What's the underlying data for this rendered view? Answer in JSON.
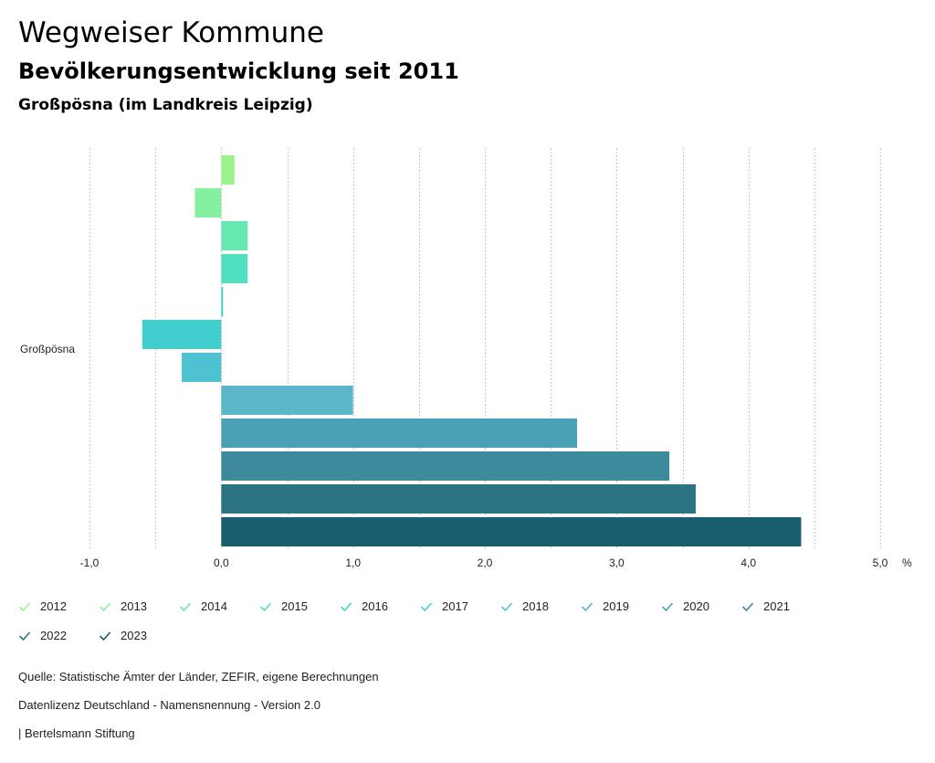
{
  "header": {
    "title": "Wegweiser Kommune",
    "subtitle": "Bevölkerungsentwicklung seit 2011",
    "region": "Großpösna (im Landkreis Leipzig)"
  },
  "chart_data": {
    "type": "bar",
    "orientation": "horizontal",
    "category": "Großpösna",
    "unit_label": "%",
    "xlim": [
      -1.0,
      5.0
    ],
    "ticks": [
      {
        "value": -1.0,
        "label": "-1,0"
      },
      {
        "value": 0.0,
        "label": "0,0"
      },
      {
        "value": 1.0,
        "label": "1,0"
      },
      {
        "value": 2.0,
        "label": "2,0"
      },
      {
        "value": 3.0,
        "label": "3,0"
      },
      {
        "value": 4.0,
        "label": "4,0"
      },
      {
        "value": 5.0,
        "label": "5,0"
      }
    ],
    "grid": true,
    "legend_position": "bottom",
    "series": [
      {
        "name": "2012",
        "value": 0.1,
        "color": "#9cf28a"
      },
      {
        "name": "2013",
        "value": -0.2,
        "color": "#84f0a0"
      },
      {
        "name": "2014",
        "value": 0.2,
        "color": "#66e8b0"
      },
      {
        "name": "2015",
        "value": 0.2,
        "color": "#50e0c0"
      },
      {
        "name": "2016",
        "value": 0.01,
        "color": "#44d6c8"
      },
      {
        "name": "2017",
        "value": -0.6,
        "color": "#42cece"
      },
      {
        "name": "2018",
        "value": -0.3,
        "color": "#4ec2d0"
      },
      {
        "name": "2019",
        "value": 1.0,
        "color": "#5ab6c8"
      },
      {
        "name": "2020",
        "value": 2.7,
        "color": "#4aa0b4"
      },
      {
        "name": "2021",
        "value": 3.4,
        "color": "#3c8a9c"
      },
      {
        "name": "2022",
        "value": 3.6,
        "color": "#2c7484"
      },
      {
        "name": "2023",
        "value": 4.4,
        "color": "#195e6e"
      }
    ]
  },
  "footer": {
    "source": "Quelle: Statistische Ämter der Länder, ZEFIR, eigene Berechnungen",
    "license": "Datenlizenz Deutschland - Namensnennung - Version 2.0",
    "publisher": "| Bertelsmann Stiftung"
  }
}
